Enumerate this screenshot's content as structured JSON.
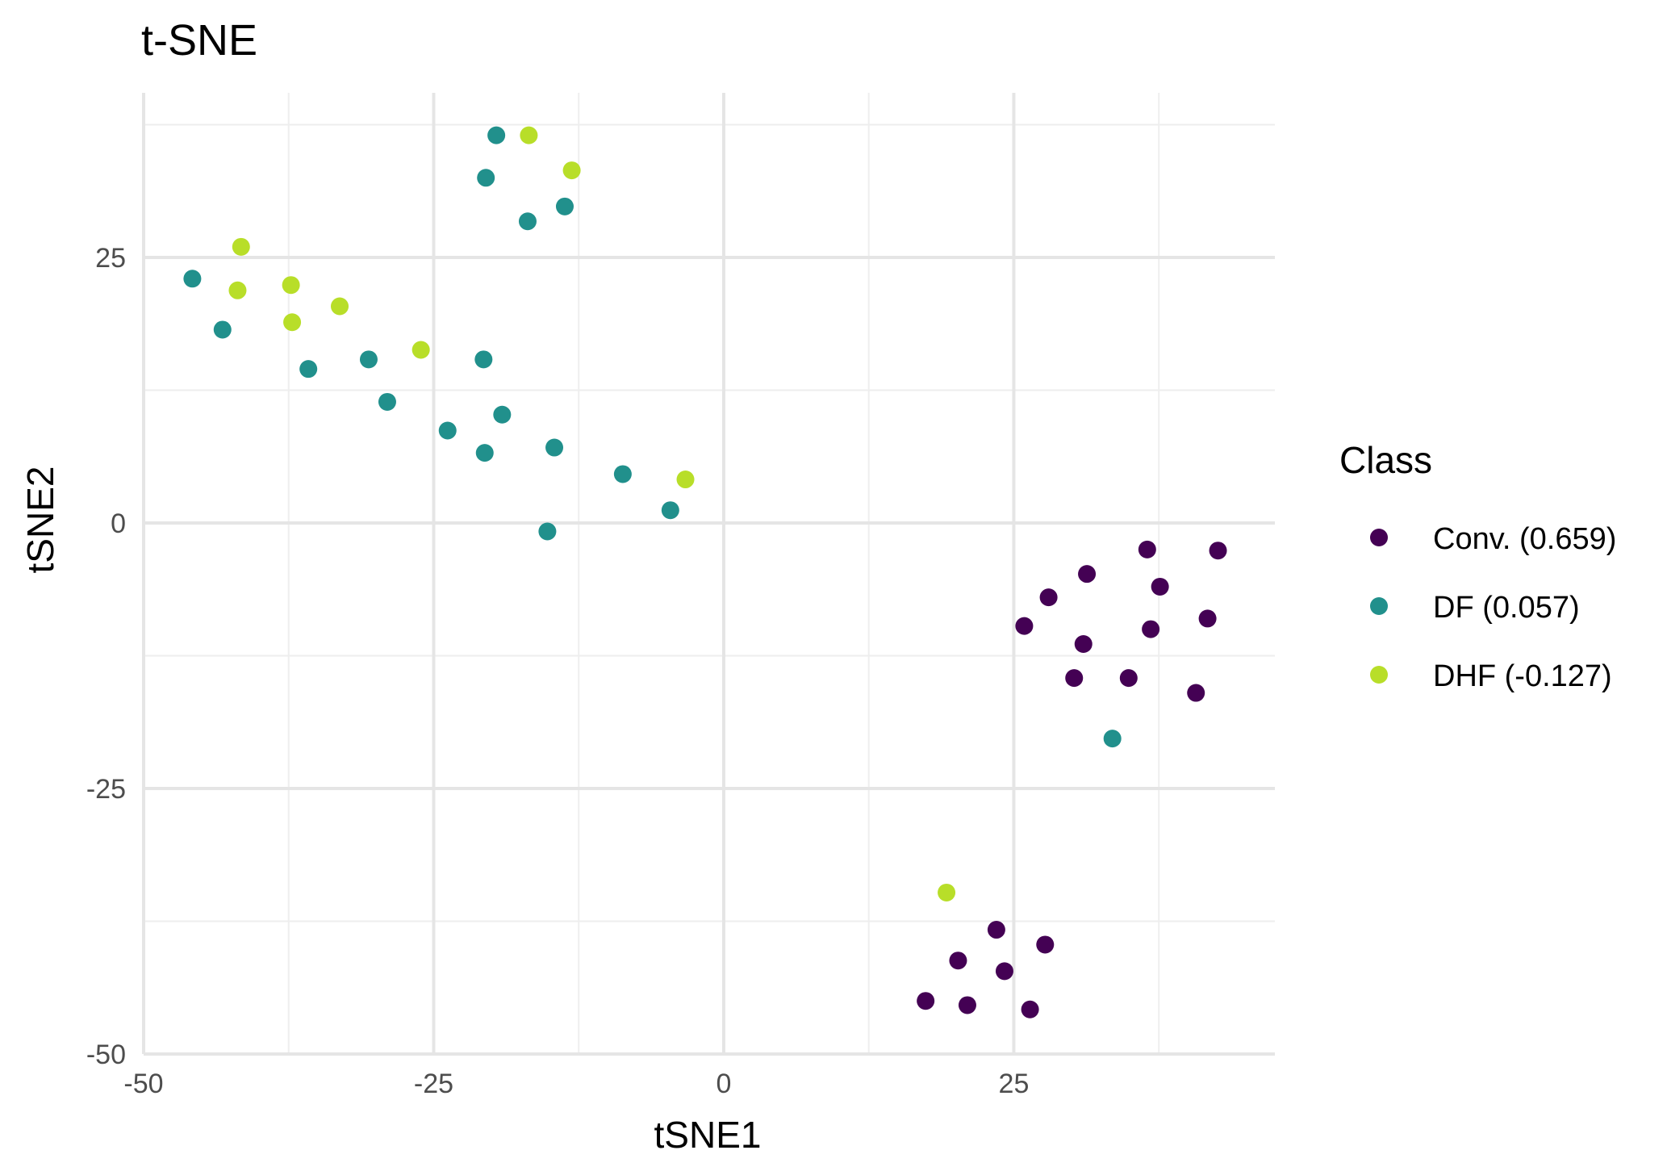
{
  "chart_data": {
    "type": "scatter",
    "title": "t-SNE",
    "xlabel": "tSNE1",
    "ylabel": "tSNE2",
    "xlim": [
      -50,
      47.5
    ],
    "ylim": [
      -50,
      40.5
    ],
    "x_ticks": [
      -50,
      -25,
      0,
      25
    ],
    "y_ticks": [
      -50,
      -25,
      0,
      25
    ],
    "x_tick_labels": [
      "-50",
      "-25",
      "0",
      "25"
    ],
    "y_tick_labels": [
      "-50",
      "-25",
      "0",
      "25"
    ],
    "grid": true,
    "legend": {
      "title": "Class",
      "placement": "right"
    },
    "series": [
      {
        "name": "Conv. (0.659)",
        "color": "#440154",
        "points": [
          [
            36.5,
            -2.5
          ],
          [
            42.6,
            -2.6
          ],
          [
            31.3,
            -4.8
          ],
          [
            37.6,
            -6.0
          ],
          [
            28.0,
            -7.0
          ],
          [
            25.9,
            -9.7
          ],
          [
            41.7,
            -9.0
          ],
          [
            36.8,
            -10.0
          ],
          [
            31.0,
            -11.4
          ],
          [
            30.2,
            -14.6
          ],
          [
            34.9,
            -14.6
          ],
          [
            40.7,
            -16.0
          ],
          [
            23.5,
            -38.3
          ],
          [
            27.7,
            -39.7
          ],
          [
            20.2,
            -41.2
          ],
          [
            24.2,
            -42.2
          ],
          [
            17.4,
            -45.0
          ],
          [
            21.0,
            -45.4
          ],
          [
            26.4,
            -45.8
          ]
        ]
      },
      {
        "name": "DF (0.057)",
        "color": "#21908C",
        "points": [
          [
            -19.6,
            36.5
          ],
          [
            -20.5,
            32.5
          ],
          [
            -13.7,
            29.8
          ],
          [
            -16.9,
            28.4
          ],
          [
            -45.8,
            23.0
          ],
          [
            -43.2,
            18.2
          ],
          [
            -35.8,
            14.5
          ],
          [
            -30.6,
            15.4
          ],
          [
            -20.7,
            15.4
          ],
          [
            -29.0,
            11.4
          ],
          [
            -19.1,
            10.2
          ],
          [
            -23.8,
            8.7
          ],
          [
            -20.6,
            6.6
          ],
          [
            -14.6,
            7.1
          ],
          [
            -8.7,
            4.6
          ],
          [
            -4.6,
            1.2
          ],
          [
            -15.2,
            -0.8
          ],
          [
            33.5,
            -20.3
          ]
        ]
      },
      {
        "name": "DHF (-0.127)",
        "color": "#B8DE29",
        "points": [
          [
            -16.8,
            36.5
          ],
          [
            -13.1,
            33.2
          ],
          [
            -41.6,
            26.0
          ],
          [
            -41.9,
            21.9
          ],
          [
            -37.3,
            22.4
          ],
          [
            -37.2,
            18.9
          ],
          [
            -33.1,
            20.4
          ],
          [
            -26.1,
            16.3
          ],
          [
            -3.3,
            4.1
          ],
          [
            19.2,
            -34.8
          ]
        ]
      }
    ]
  }
}
